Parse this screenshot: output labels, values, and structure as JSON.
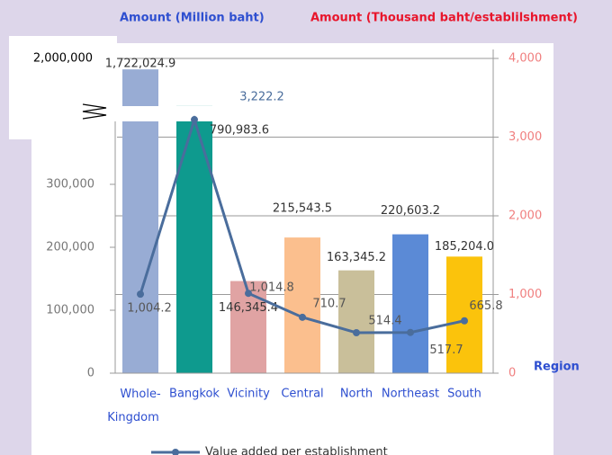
{
  "chart_data": {
    "type": "bar_line",
    "ylabel": "Amount  (Million baht)",
    "y2label": "Amount (Thousand baht/establilshment)",
    "xlabel": "Region",
    "categories": [
      "Whole-Kingdom",
      "Bangkok",
      "Vicinity",
      "Central",
      "North",
      "Northeast",
      "South"
    ],
    "series": [
      {
        "name": "Value added",
        "type": "bar",
        "colors": [
          "#98acd4",
          "#0e9a8e",
          "#e0a3a3",
          "#fbbf8e",
          "#c9bf9a",
          "#5b8ad6",
          "#fbc30c"
        ],
        "values": [
          1722024.9,
          790983.6,
          146345.4,
          215543.5,
          163345.2,
          220603.2,
          185204.0
        ],
        "value_labels": [
          "1,722,024.9",
          "790,983.6",
          "146,345.4",
          "215,543.5",
          "163,345.2",
          "220,603.2",
          "185,204.0"
        ]
      },
      {
        "name": "Value added per establishment",
        "type": "line",
        "axis": "y2",
        "color": "#4a6d9c",
        "values": [
          1004.2,
          3222.2,
          1014.8,
          710.7,
          514.4,
          517.7,
          665.8
        ],
        "value_labels": [
          "1,004.2",
          "3,222.2",
          "1,014.8",
          "710.7",
          "514.4",
          "517.7",
          "665.8"
        ]
      }
    ],
    "ylim": [
      0,
      2000000
    ],
    "axis_break": 400000,
    "yticks": [
      0,
      {
        "value": 100000,
        "label": "100,000"
      },
      {
        "value": 200000,
        "label": "200,000"
      },
      {
        "value": 300000,
        "label": "300,000"
      },
      {
        "value": 2000000,
        "label": "2,000,000"
      }
    ],
    "y2lim": [
      0,
      4000
    ],
    "y2ticks": [
      0,
      {
        "value": 1000,
        "label": "1,000"
      },
      {
        "value": 2000,
        "label": "2,000"
      },
      {
        "value": 3000,
        "label": "3,000"
      },
      {
        "value": 4000,
        "label": "4,000"
      }
    ],
    "grid": "y2"
  }
}
